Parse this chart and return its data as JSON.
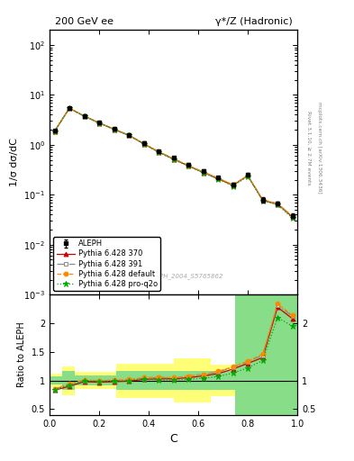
{
  "title_left": "200 GeV ee",
  "title_right": "γ*/Z (Hadronic)",
  "ylabel_main": "1/σ dσ/dC",
  "ylabel_ratio": "Ratio to ALEPH",
  "xlabel": "C",
  "rivet_label": "Rivet 3.1.10, ≥ 2.7M events",
  "mcplots_label": "mcplots.cern.ch [arXiv:1306.3436]",
  "ref_label": "ALEPH_2004_S5765862",
  "data_x": [
    0.02,
    0.08,
    0.14,
    0.2,
    0.26,
    0.32,
    0.38,
    0.44,
    0.5,
    0.56,
    0.62,
    0.68,
    0.74,
    0.8,
    0.86,
    0.92,
    0.98
  ],
  "data_y": [
    1.9,
    5.5,
    3.8,
    2.8,
    2.1,
    1.6,
    1.1,
    0.75,
    0.55,
    0.4,
    0.3,
    0.22,
    0.16,
    0.25,
    0.08,
    0.068,
    0.038
  ],
  "data_yerr": [
    0.15,
    0.3,
    0.2,
    0.15,
    0.1,
    0.08,
    0.06,
    0.04,
    0.03,
    0.025,
    0.02,
    0.015,
    0.012,
    0.02,
    0.01,
    0.005,
    0.004
  ],
  "mc1_x": [
    0.02,
    0.08,
    0.14,
    0.2,
    0.26,
    0.32,
    0.38,
    0.44,
    0.5,
    0.56,
    0.62,
    0.68,
    0.74,
    0.8,
    0.86,
    0.92,
    0.98
  ],
  "mc1_y": [
    1.85,
    5.4,
    3.75,
    2.75,
    2.05,
    1.55,
    1.05,
    0.72,
    0.52,
    0.38,
    0.28,
    0.21,
    0.155,
    0.24,
    0.078,
    0.065,
    0.036
  ],
  "mc1_label": "Pythia 6.428 370",
  "mc1_color": "#cc0000",
  "mc1_linestyle": "-",
  "mc1_marker": "^",
  "mc1_mfc": "#cc0000",
  "mc1_mec": "#cc0000",
  "mc2_x": [
    0.02,
    0.08,
    0.14,
    0.2,
    0.26,
    0.32,
    0.38,
    0.44,
    0.5,
    0.56,
    0.62,
    0.68,
    0.74,
    0.8,
    0.86,
    0.92,
    0.98
  ],
  "mc2_y": [
    1.87,
    5.45,
    3.78,
    2.77,
    2.07,
    1.57,
    1.07,
    0.73,
    0.53,
    0.385,
    0.285,
    0.215,
    0.158,
    0.243,
    0.079,
    0.066,
    0.037
  ],
  "mc2_label": "Pythia 6.428 391",
  "mc2_color": "#888888",
  "mc2_linestyle": "-.",
  "mc2_marker": "s",
  "mc2_mfc": "white",
  "mc2_mec": "#888888",
  "mc3_x": [
    0.02,
    0.08,
    0.14,
    0.2,
    0.26,
    0.32,
    0.38,
    0.44,
    0.5,
    0.56,
    0.62,
    0.68,
    0.74,
    0.8,
    0.86,
    0.92,
    0.98
  ],
  "mc3_y": [
    1.88,
    5.43,
    3.76,
    2.76,
    2.06,
    1.56,
    1.06,
    0.73,
    0.53,
    0.387,
    0.287,
    0.217,
    0.159,
    0.244,
    0.08,
    0.067,
    0.0375
  ],
  "mc3_label": "Pythia 6.428 default",
  "mc3_color": "#ff8800",
  "mc3_linestyle": "--",
  "mc3_marker": "o",
  "mc3_mfc": "#ff8800",
  "mc3_mec": "#ff8800",
  "mc4_x": [
    0.02,
    0.08,
    0.14,
    0.2,
    0.26,
    0.32,
    0.38,
    0.44,
    0.5,
    0.56,
    0.62,
    0.68,
    0.74,
    0.8,
    0.86,
    0.92,
    0.98
  ],
  "mc4_y": [
    1.86,
    5.42,
    3.74,
    2.74,
    2.04,
    1.54,
    1.04,
    0.71,
    0.51,
    0.375,
    0.275,
    0.205,
    0.15,
    0.235,
    0.076,
    0.063,
    0.034
  ],
  "mc4_label": "Pythia 6.428 pro-q2o",
  "mc4_color": "#00aa00",
  "mc4_linestyle": ":",
  "mc4_marker": "*",
  "mc4_mfc": "#00aa00",
  "mc4_mec": "#00aa00",
  "ratio_mc1_y": [
    0.83,
    0.9,
    0.98,
    0.97,
    0.98,
    0.99,
    1.02,
    1.03,
    1.03,
    1.05,
    1.08,
    1.12,
    1.2,
    1.3,
    1.4,
    2.28,
    2.08
  ],
  "ratio_mc2_y": [
    0.85,
    0.93,
    1.0,
    0.995,
    1.0,
    1.01,
    1.04,
    1.05,
    1.04,
    1.07,
    1.1,
    1.15,
    1.23,
    1.33,
    1.44,
    2.32,
    2.12
  ],
  "ratio_mc3_y": [
    0.86,
    0.94,
    1.01,
    0.998,
    1.01,
    1.02,
    1.05,
    1.06,
    1.05,
    1.08,
    1.11,
    1.16,
    1.24,
    1.34,
    1.46,
    2.34,
    2.14
  ],
  "ratio_mc4_y": [
    0.84,
    0.92,
    0.99,
    0.98,
    0.99,
    1.0,
    1.03,
    1.01,
    1.01,
    1.02,
    1.04,
    1.07,
    1.13,
    1.22,
    1.35,
    2.1,
    1.95
  ],
  "ylim_main": [
    0.001,
    200
  ],
  "ylim_ratio": [
    0.4,
    2.5
  ],
  "xlim": [
    0.0,
    1.0
  ]
}
